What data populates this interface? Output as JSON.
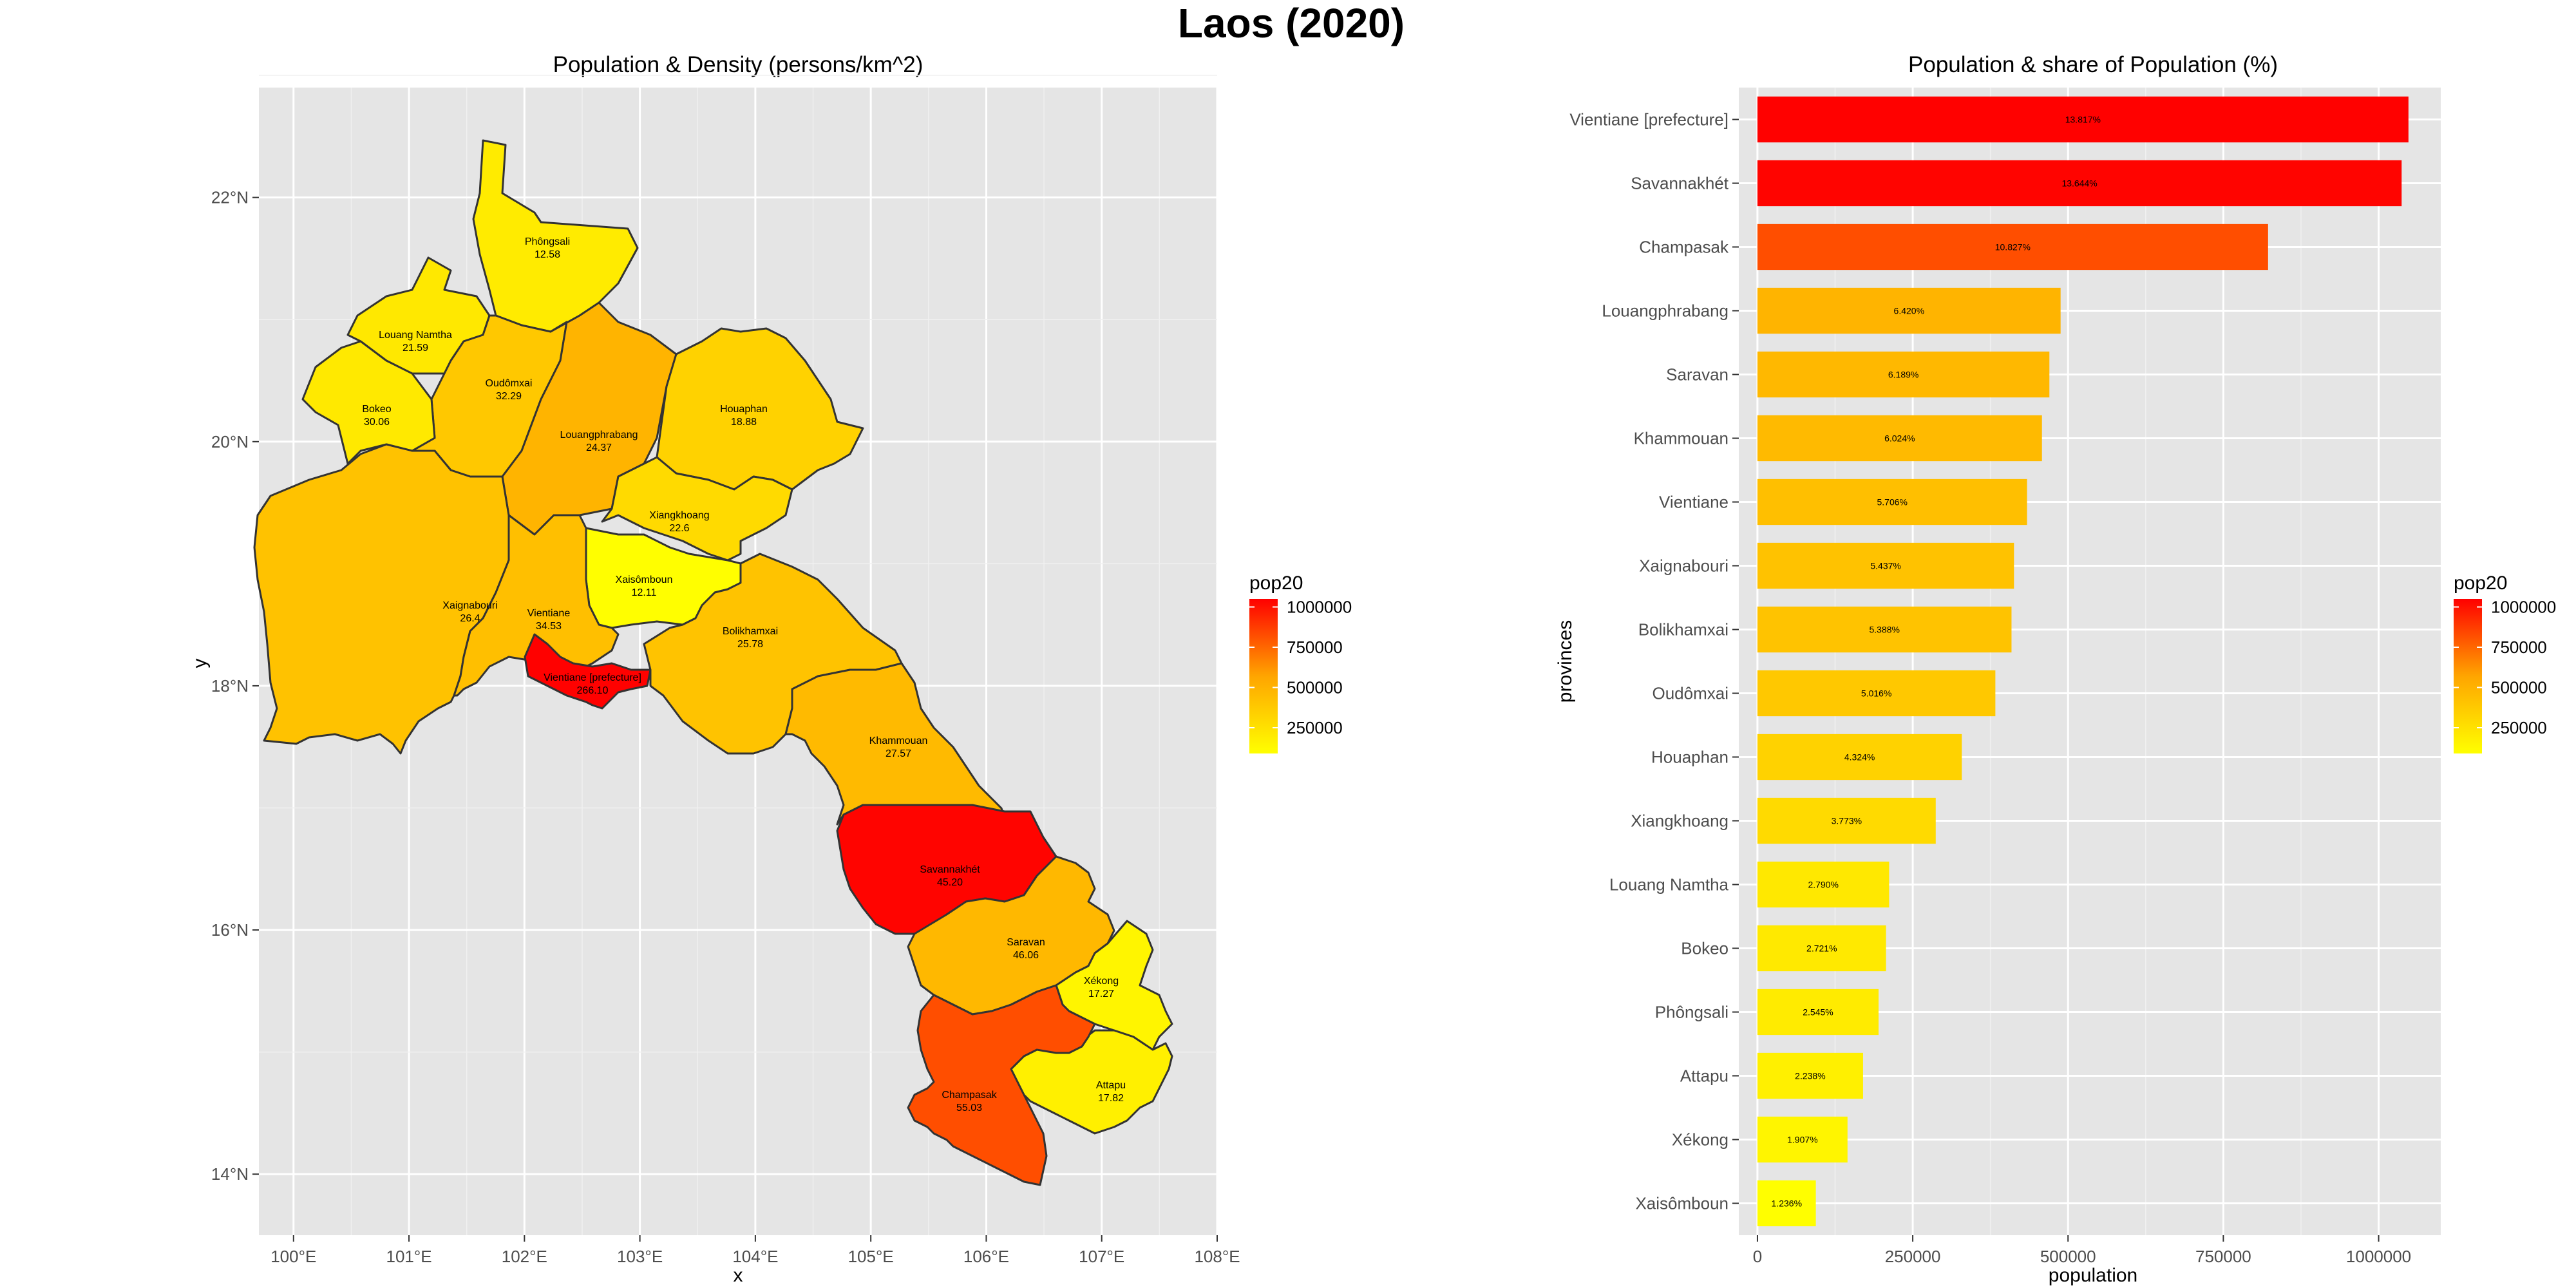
{
  "title": "Laos (2020)",
  "chart_data": [
    {
      "type": "map",
      "title": "Population & Density (persons/km^2)",
      "xlabel": "x",
      "ylabel": "y",
      "xlim": [
        99.7,
        108.0
      ],
      "ylim": [
        13.5,
        22.9
      ],
      "x_ticks": [
        "100°E",
        "101°E",
        "102°E",
        "103°E",
        "104°E",
        "105°E",
        "106°E",
        "107°E",
        "108°E"
      ],
      "y_ticks": [
        "14°N",
        "16°N",
        "18°N",
        "20°N",
        "22°N"
      ],
      "legend_title": "pop20",
      "legend_labels": [
        "1000000",
        "750000",
        "500000",
        "250000"
      ],
      "colors": {
        "low": "#ffff00",
        "mid": "#ffa500",
        "high": "#ff0000",
        "panel": "#e5e5e5",
        "grid": "#ffffff",
        "border": "#333333"
      },
      "regions": [
        {
          "name": "Phôngsali",
          "density": "12.58",
          "pop": 195000
        },
        {
          "name": "Louang Namtha",
          "density": "21.59",
          "pop": 212000
        },
        {
          "name": "Oudômxai",
          "density": "32.29",
          "pop": 383000
        },
        {
          "name": "Bokeo",
          "density": "30.06",
          "pop": 207000
        },
        {
          "name": "Louangphrabang",
          "density": "24.37",
          "pop": 488000
        },
        {
          "name": "Houaphan",
          "density": "18.88",
          "pop": 329000
        },
        {
          "name": "Xiangkhoang",
          "density": "22.6",
          "pop": 287000
        },
        {
          "name": "Xaisômboun",
          "density": "12.11",
          "pop": 94000
        },
        {
          "name": "Xaignabouri",
          "density": "26.4",
          "pop": 413000
        },
        {
          "name": "Vientiane",
          "density": "34.53",
          "pop": 434000
        },
        {
          "name": "Vientiane [prefecture]",
          "density": "266.10",
          "pop": 1048000
        },
        {
          "name": "Bolikhamxai",
          "density": "25.78",
          "pop": 409000
        },
        {
          "name": "Khammouan",
          "density": "27.57",
          "pop": 458000
        },
        {
          "name": "Savannakhét",
          "density": "45.20",
          "pop": 1037000
        },
        {
          "name": "Saravan",
          "density": "46.06",
          "pop": 470000
        },
        {
          "name": "Xékong",
          "density": "17.27",
          "pop": 145000
        },
        {
          "name": "Attapu",
          "density": "17.82",
          "pop": 170000
        },
        {
          "name": "Champasak",
          "density": "55.03",
          "pop": 822000
        }
      ]
    },
    {
      "type": "bar",
      "orientation": "horizontal",
      "title": "Population & share of Population (%)",
      "xlabel": "population",
      "ylabel": "provinces",
      "xlim": [
        -30000,
        1100000
      ],
      "x_ticks": [
        0,
        250000,
        500000,
        750000,
        1000000
      ],
      "legend_title": "pop20",
      "legend_labels": [
        "1000000",
        "750000",
        "500000",
        "250000"
      ],
      "categories": [
        "Vientiane [prefecture]",
        "Savannakhét",
        "Champasak",
        "Louangphrabang",
        "Saravan",
        "Khammouan",
        "Vientiane",
        "Xaignabouri",
        "Bolikhamxai",
        "Oudômxai",
        "Houaphan",
        "Xiangkhoang",
        "Louang Namtha",
        "Bokeo",
        "Phôngsali",
        "Attapu",
        "Xékong",
        "Xaisômboun"
      ],
      "values": [
        1048000,
        1037000,
        822000,
        488000,
        470000,
        458000,
        434000,
        413000,
        409000,
        383000,
        329000,
        287000,
        212000,
        207000,
        195000,
        170000,
        145000,
        94000
      ],
      "shares": [
        "13.817%",
        "13.644%",
        "10.827%",
        "6.420%",
        "6.189%",
        "6.024%",
        "5.706%",
        "5.437%",
        "5.388%",
        "5.016%",
        "4.324%",
        "3.773%",
        "2.790%",
        "2.721%",
        "2.545%",
        "2.238%",
        "1.907%",
        "1.236%"
      ]
    }
  ]
}
